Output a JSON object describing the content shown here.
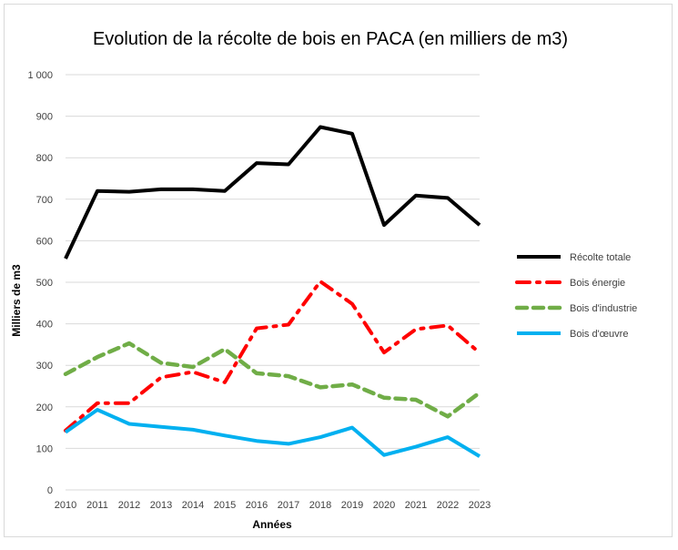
{
  "chart_data": {
    "type": "line",
    "title": "Evolution de la récolte de bois en PACA  (en milliers de m3)",
    "xlabel": "Années",
    "ylabel": "Milliers de m3",
    "x": [
      "2010",
      "2011",
      "2012",
      "2013",
      "2014",
      "2015",
      "2016",
      "2017",
      "2018",
      "2019",
      "2020",
      "2021",
      "2022",
      "2023"
    ],
    "ylim": [
      0,
      1000
    ],
    "yticks": [
      0,
      100,
      200,
      300,
      400,
      500,
      600,
      700,
      800,
      900,
      1000
    ],
    "ytick_labels": [
      "0",
      "100",
      "200",
      "300",
      "400",
      "500",
      "600",
      "700",
      "800",
      "900",
      "1 000"
    ],
    "grid": true,
    "legend_position": "right",
    "series": [
      {
        "name": "Récolte totale",
        "color": "#000000",
        "style": "solid",
        "values": [
          557,
          720,
          718,
          724,
          724,
          720,
          787,
          784,
          874,
          858,
          638,
          709,
          703,
          638
        ]
      },
      {
        "name": "Bois énergie",
        "color": "#ff0000",
        "style": "dash-dot",
        "values": [
          143,
          209,
          209,
          271,
          284,
          259,
          389,
          398,
          502,
          448,
          331,
          387,
          396,
          330
        ]
      },
      {
        "name": "Bois d'industrie",
        "color": "#70ad47",
        "style": "dashed",
        "values": [
          279,
          320,
          353,
          306,
          296,
          339,
          281,
          274,
          247,
          254,
          222,
          217,
          177,
          234
        ]
      },
      {
        "name": "Bois d'œuvre",
        "color": "#00b0f0",
        "style": "solid",
        "values": [
          139,
          193,
          159,
          152,
          145,
          131,
          118,
          111,
          127,
          150,
          84,
          104,
          127,
          81
        ]
      }
    ]
  }
}
